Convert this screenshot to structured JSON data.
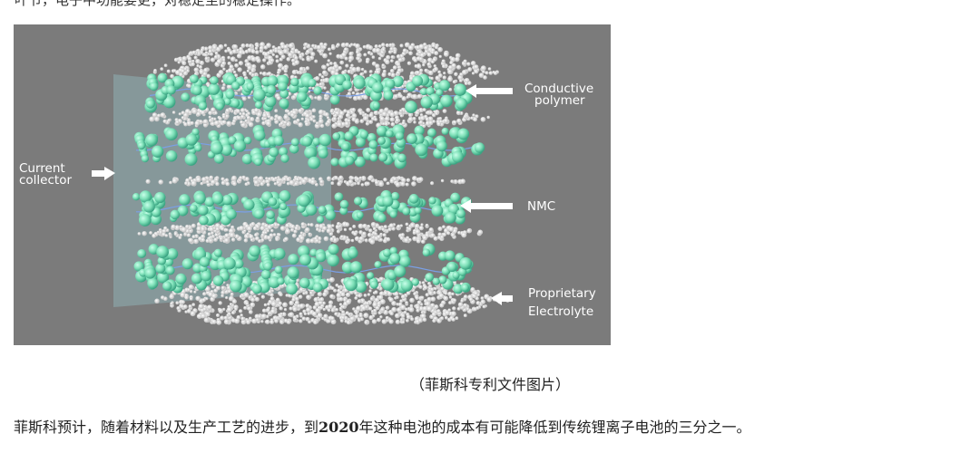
{
  "top_line": "叶节，电子中功能要更，对稳定至的稳定操作。",
  "figure": {
    "labels": {
      "conductive_polymer_line1": "Conductive",
      "conductive_polymer_line2": "polymer",
      "current_collector_line1": "Current",
      "current_collector_line2": "collector",
      "nmc": "NMC",
      "electrolyte_line1": "Proprietary",
      "electrolyte_line2": "Electrolyte"
    },
    "colors": {
      "background": "#7b7b7b",
      "particle": "#7ee0b8",
      "collector": "#8fb0b4",
      "electrolyte": "#d9d9d9",
      "arrow": "#ffffff"
    }
  },
  "caption": "（菲斯科专利文件图片）",
  "paragraph": {
    "before": "菲斯科预计，随着材料以及生产工艺的进步，到",
    "year": "2020",
    "after": "年这种电池的成本有可能降低到传统锂离子电池的三分之一。"
  }
}
